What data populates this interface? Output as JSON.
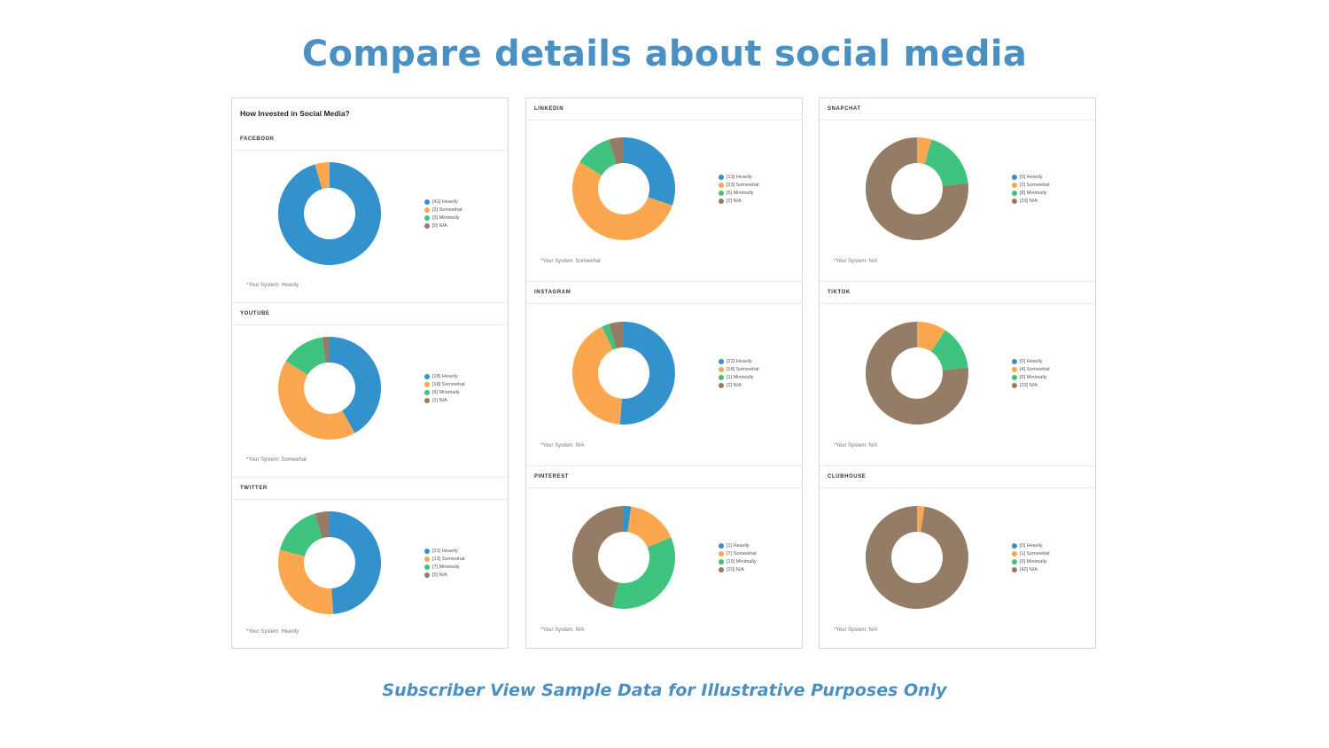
{
  "title": "Compare details about social media",
  "footer": "Subscriber View Sample Data for Illustrative Purposes Only",
  "panel_heading": "How Invested in Social Media?",
  "colors": {
    "Heavily": "#3391cc",
    "Somewhat": "#fba74f",
    "Minimally": "#40c37f",
    "N/A": "#957c67"
  },
  "chart_data": [
    {
      "type": "pie",
      "donut": true,
      "title": "FACEBOOK",
      "categories": [
        "Heavily",
        "Somewhat",
        "Minimally",
        "N/A"
      ],
      "values": [
        41,
        2,
        0,
        0
      ],
      "legend": [
        "[41] Heavily",
        "[2] Somewhat",
        "[0] Minimally",
        "[0] N/A"
      ],
      "note": "*Your System: Heavily"
    },
    {
      "type": "pie",
      "donut": true,
      "title": "YOUTUBE",
      "categories": [
        "Heavily",
        "Somewhat",
        "Minimally",
        "N/A"
      ],
      "values": [
        18,
        18,
        6,
        1
      ],
      "legend": [
        "[18] Heavily",
        "[18] Somewhat",
        "[6] Minimally",
        "[1] N/A"
      ],
      "note": "*Your System: Somewhat"
    },
    {
      "type": "pie",
      "donut": true,
      "title": "TWITTER",
      "categories": [
        "Heavily",
        "Somewhat",
        "Minimally",
        "N/A"
      ],
      "values": [
        21,
        13,
        7,
        2
      ],
      "legend": [
        "[21] Heavily",
        "[13] Somewhat",
        "[7] Minimally",
        "[2] N/A"
      ],
      "note": "*Your System: Heavily"
    },
    {
      "type": "pie",
      "donut": true,
      "title": "LINKEDIN",
      "categories": [
        "Heavily",
        "Somewhat",
        "Minimally",
        "N/A"
      ],
      "values": [
        13,
        23,
        5,
        2
      ],
      "legend": [
        "[13] Heavily",
        "[23] Somewhat",
        "[5] Minimally",
        "[2] N/A"
      ],
      "note": "*Your System: Somewhat"
    },
    {
      "type": "pie",
      "donut": true,
      "title": "INSTAGRAM",
      "categories": [
        "Heavily",
        "Somewhat",
        "Minimally",
        "N/A"
      ],
      "values": [
        22,
        18,
        1,
        2
      ],
      "legend": [
        "[22] Heavily",
        "[18] Somewhat",
        "[1] Minimally",
        "[2] N/A"
      ],
      "note": "*Your System: N/A"
    },
    {
      "type": "pie",
      "donut": true,
      "title": "PINTEREST",
      "categories": [
        "Heavily",
        "Somewhat",
        "Minimally",
        "N/A"
      ],
      "values": [
        1,
        7,
        15,
        20
      ],
      "legend": [
        "[1] Heavily",
        "[7] Somewhat",
        "[15] Minimally",
        "[20] N/A"
      ],
      "note": "*Your System: N/A"
    },
    {
      "type": "pie",
      "donut": true,
      "title": "SNAPCHAT",
      "categories": [
        "Heavily",
        "Somewhat",
        "Minimally",
        "N/A"
      ],
      "values": [
        0,
        2,
        8,
        33
      ],
      "legend": [
        "[0] Heavily",
        "[2] Somewhat",
        "[8] Minimally",
        "[33] N/A"
      ],
      "note": "*Your System: N/A"
    },
    {
      "type": "pie",
      "donut": true,
      "title": "TIKTOK",
      "categories": [
        "Heavily",
        "Somewhat",
        "Minimally",
        "N/A"
      ],
      "values": [
        0,
        4,
        6,
        33
      ],
      "legend": [
        "[0] Heavily",
        "[4] Somewhat",
        "[6] Minimally",
        "[33] N/A"
      ],
      "note": "*Your System: N/A"
    },
    {
      "type": "pie",
      "donut": true,
      "title": "CLUBHOUSE",
      "categories": [
        "Heavily",
        "Somewhat",
        "Minimally",
        "N/A"
      ],
      "values": [
        0,
        1,
        0,
        42
      ],
      "legend": [
        "[0] Heavily",
        "[1] Somewhat",
        "[0] Minimally",
        "[42] N/A"
      ],
      "note": "*Your System: N/A"
    }
  ]
}
